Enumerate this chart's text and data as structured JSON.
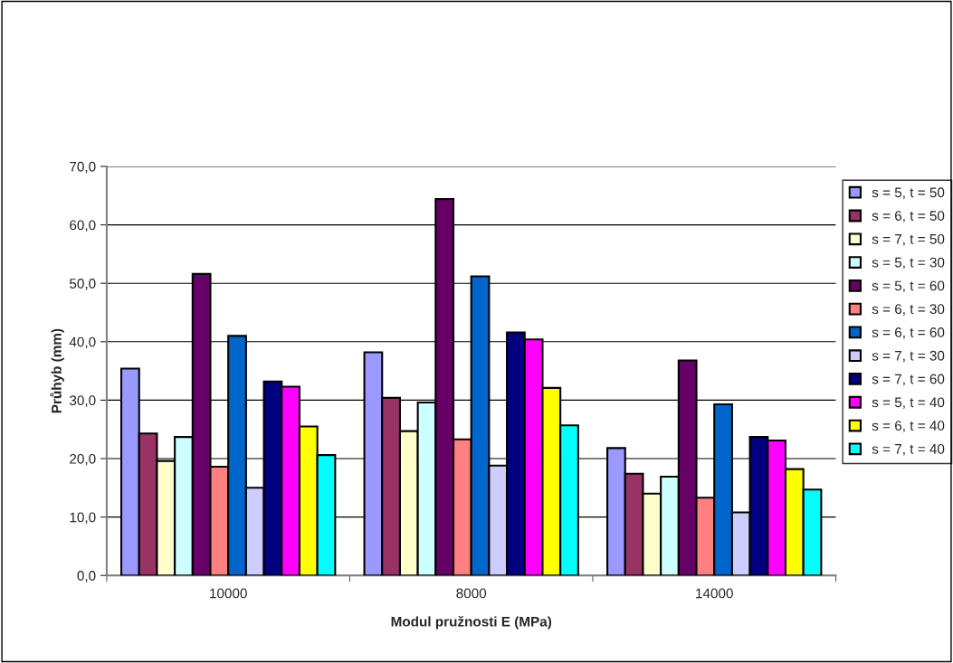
{
  "chart_data": {
    "type": "bar",
    "xlabel": "Modul pružnosti E (MPa)",
    "ylabel": "Průhyb (mm)",
    "categories": [
      "10000",
      "8000",
      "14000"
    ],
    "series": [
      {
        "name": "s = 5, t = 50",
        "color": "#9999ff",
        "values": [
          35.4,
          38.2,
          21.8
        ]
      },
      {
        "name": "s = 6, t = 50",
        "color": "#993366",
        "values": [
          24.3,
          30.4,
          17.4
        ]
      },
      {
        "name": "s = 7, t = 50",
        "color": "#ffffcc",
        "values": [
          19.6,
          24.7,
          14.0
        ]
      },
      {
        "name": "s = 5, t = 30",
        "color": "#ccffff",
        "values": [
          23.7,
          29.6,
          16.9
        ]
      },
      {
        "name": "s = 5, t = 60",
        "color": "#660066",
        "values": [
          51.6,
          64.4,
          36.8
        ]
      },
      {
        "name": "s = 6, t = 30",
        "color": "#ff8080",
        "values": [
          18.6,
          23.3,
          13.3
        ]
      },
      {
        "name": "s = 6, t = 60",
        "color": "#0066cc",
        "values": [
          41.0,
          51.2,
          29.3
        ]
      },
      {
        "name": "s = 7, t = 30",
        "color": "#ccccff",
        "values": [
          15.0,
          18.8,
          10.8
        ]
      },
      {
        "name": "s = 7, t = 60",
        "color": "#000080",
        "values": [
          33.2,
          41.6,
          23.7
        ]
      },
      {
        "name": "s = 5, t = 40",
        "color": "#ff00ff",
        "values": [
          32.3,
          40.4,
          23.1
        ]
      },
      {
        "name": "s = 6, t = 40",
        "color": "#ffff00",
        "values": [
          25.5,
          32.1,
          18.2
        ]
      },
      {
        "name": "s = 7, t = 40",
        "color": "#00ffff",
        "values": [
          20.6,
          25.7,
          14.7
        ]
      }
    ],
    "ylim": [
      0,
      70
    ],
    "yticks": [
      {
        "value": 0,
        "label": "0,0"
      },
      {
        "value": 10,
        "label": "10,0"
      },
      {
        "value": 20,
        "label": "20,0"
      },
      {
        "value": 30,
        "label": "30,0"
      },
      {
        "value": 40,
        "label": "40,0"
      },
      {
        "value": 50,
        "label": "50,0"
      },
      {
        "value": 60,
        "label": "60,0"
      },
      {
        "value": 70,
        "label": "70,0"
      }
    ],
    "grid": "y",
    "legend": "right"
  }
}
